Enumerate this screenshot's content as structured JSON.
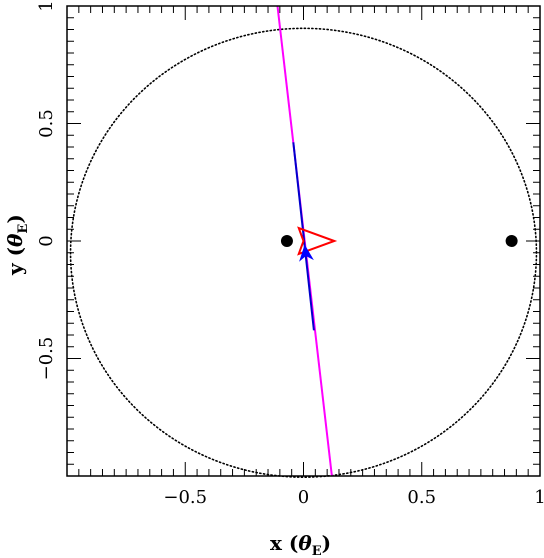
{
  "chart_data": {
    "type": "scatter",
    "xlabel": "x",
    "xlabel_unit": "θ",
    "xlabel_unit_sub": "E",
    "ylabel": "y",
    "ylabel_unit": "θ",
    "ylabel_unit_sub": "E",
    "xlim": [
      -1,
      1
    ],
    "ylim": [
      -1,
      1
    ],
    "x_ticks": [
      {
        "value": -0.5,
        "label": "−0.5"
      },
      {
        "value": 0,
        "label": "0"
      },
      {
        "value": 0.5,
        "label": "0.5"
      },
      {
        "value": 1,
        "label": "1"
      }
    ],
    "y_ticks": [
      {
        "value": -0.5,
        "label": "−0.5"
      },
      {
        "value": 0,
        "label": "0"
      },
      {
        "value": 0.5,
        "label": "0.5"
      },
      {
        "value": 1,
        "label": "1"
      }
    ],
    "critical_curve": {
      "color": "#000000",
      "style": "dotted",
      "center": [
        0.0,
        -0.05
      ],
      "radius_x": 0.985,
      "radius_y": 0.955
    },
    "lens_masses": [
      {
        "x": -0.07,
        "y": 0.0
      },
      {
        "x": 0.88,
        "y": 0.0
      }
    ],
    "caustic": {
      "color": "#ff0000",
      "points": [
        [
          0.13,
          0.0
        ],
        [
          -0.02,
          0.055
        ],
        [
          0.0,
          0.0
        ],
        [
          -0.02,
          -0.055
        ],
        [
          0.13,
          0.0
        ]
      ]
    },
    "source_trajectory": {
      "color": "#ff00ff",
      "points": [
        [
          -0.11,
          1.0
        ],
        [
          0.12,
          -1.0
        ]
      ]
    },
    "trajectory_highlight": {
      "color": "#0000cc",
      "points": [
        [
          -0.043,
          0.42
        ],
        [
          0.044,
          -0.38
        ]
      ]
    },
    "direction_arrow": {
      "color": "#0000ff",
      "tip": [
        0.005,
        -0.015
      ],
      "size": 0.07
    }
  }
}
